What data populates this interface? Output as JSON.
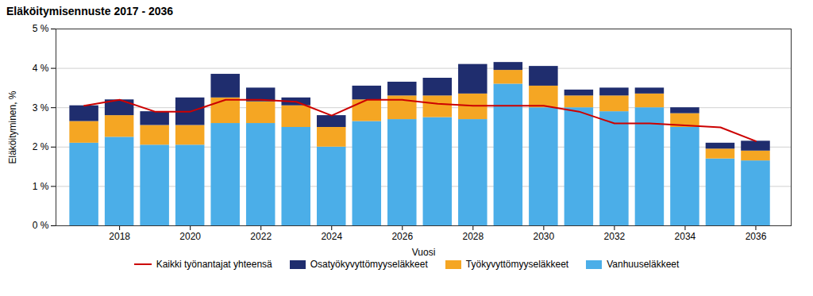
{
  "chart_data": {
    "type": "bar",
    "stacked": true,
    "title": "Eläköitymisennuste 2017 - 2036",
    "xlabel": "Vuosi",
    "ylabel": "Eläköityminen, %",
    "x": [
      2017,
      2018,
      2019,
      2020,
      2021,
      2022,
      2023,
      2024,
      2025,
      2026,
      2027,
      2028,
      2029,
      2030,
      2031,
      2032,
      2033,
      2034,
      2035,
      2036
    ],
    "series": [
      {
        "name": "Vanhuuseläkkeet",
        "type": "bar",
        "color": "#4baee8",
        "values": [
          2.1,
          2.25,
          2.05,
          2.05,
          2.6,
          2.6,
          2.5,
          2.0,
          2.65,
          2.7,
          2.75,
          2.7,
          3.6,
          3.0,
          3.0,
          2.9,
          3.0,
          2.5,
          1.7,
          1.65
        ]
      },
      {
        "name": "Työkyvyttömyyseläkkeet",
        "type": "bar",
        "color": "#f5a623",
        "values": [
          0.55,
          0.55,
          0.5,
          0.5,
          0.65,
          0.55,
          0.55,
          0.5,
          0.55,
          0.6,
          0.55,
          0.65,
          0.35,
          0.55,
          0.3,
          0.4,
          0.35,
          0.35,
          0.25,
          0.25
        ]
      },
      {
        "name": "Osatyökyvyttömyyseläkkeet",
        "type": "bar",
        "color": "#1f2d6e",
        "values": [
          0.4,
          0.4,
          0.35,
          0.7,
          0.6,
          0.35,
          0.2,
          0.3,
          0.35,
          0.35,
          0.45,
          0.75,
          0.2,
          0.5,
          0.15,
          0.2,
          0.15,
          0.15,
          0.15,
          0.25
        ]
      },
      {
        "name": "Kaikki työnantajat yhteensä",
        "type": "line",
        "color": "#cc0000",
        "values": [
          3.05,
          3.2,
          2.9,
          2.9,
          3.2,
          3.2,
          3.15,
          2.8,
          3.2,
          3.2,
          3.1,
          3.05,
          3.05,
          3.05,
          2.9,
          2.6,
          2.6,
          2.55,
          2.5,
          2.15
        ]
      }
    ],
    "xlim": [
      2016.2,
      2037.0
    ],
    "xticks": [
      2018,
      2020,
      2022,
      2024,
      2026,
      2028,
      2030,
      2032,
      2034,
      2036
    ],
    "ylim": [
      0,
      5
    ],
    "yticks": [
      {
        "value": 0,
        "label": "0 %"
      },
      {
        "value": 1,
        "label": "1 %"
      },
      {
        "value": 2,
        "label": "2 %"
      },
      {
        "value": 3,
        "label": "3 %"
      },
      {
        "value": 4,
        "label": "4 %"
      },
      {
        "value": 5,
        "label": "5 %"
      }
    ],
    "grid": true,
    "legend": "bottom"
  }
}
